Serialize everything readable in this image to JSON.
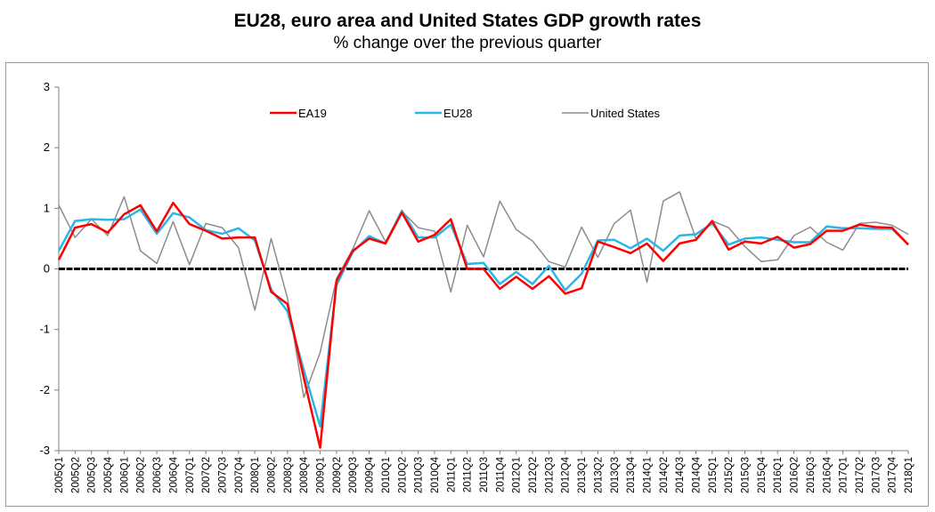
{
  "chart_data": {
    "type": "line",
    "title": "EU28, euro area and United States GDP growth rates",
    "subtitle": "% change over the previous quarter",
    "xlabel": "",
    "ylabel": "",
    "ylim": [
      -3,
      3
    ],
    "yticks": [
      3,
      2,
      1,
      0,
      -1,
      -2,
      -3
    ],
    "grid": false,
    "legend_position": "top",
    "categories": [
      "2005Q1",
      "2005Q2",
      "2005Q3",
      "2005Q4",
      "2006Q1",
      "2006Q2",
      "2006Q3",
      "2006Q4",
      "2007Q1",
      "2007Q2",
      "2007Q3",
      "2007Q4",
      "2008Q1",
      "2008Q2",
      "2008Q3",
      "2008Q4",
      "2009Q1",
      "2009Q2",
      "2009Q3",
      "2009Q4",
      "2010Q1",
      "2010Q2",
      "2010Q3",
      "2010Q4",
      "2011Q1",
      "2011Q2",
      "2011Q3",
      "2011Q4",
      "2012Q1",
      "2012Q2",
      "2012Q3",
      "2012Q4",
      "2013Q1",
      "2013Q2",
      "2013Q3",
      "2013Q4",
      "2014Q1",
      "2014Q2",
      "2014Q3",
      "2014Q4",
      "2015Q1",
      "2015Q2",
      "2015Q3",
      "2015Q4",
      "2016Q1",
      "2016Q2",
      "2016Q3",
      "2016Q4",
      "2017Q1",
      "2017Q2",
      "2017Q3",
      "2017Q4",
      "2018Q1"
    ],
    "series": [
      {
        "name": "EA19",
        "color": "#ff0000",
        "width": 2.5,
        "values": [
          0.15,
          0.68,
          0.74,
          0.6,
          0.9,
          1.05,
          0.62,
          1.09,
          0.74,
          0.63,
          0.5,
          0.52,
          0.52,
          -0.38,
          -0.58,
          -1.8,
          -2.95,
          -0.2,
          0.3,
          0.5,
          0.42,
          0.93,
          0.45,
          0.56,
          0.82,
          0.0,
          0.0,
          -0.33,
          -0.13,
          -0.33,
          -0.12,
          -0.41,
          -0.32,
          0.45,
          0.36,
          0.26,
          0.42,
          0.13,
          0.42,
          0.48,
          0.79,
          0.32,
          0.45,
          0.42,
          0.53,
          0.35,
          0.41,
          0.63,
          0.63,
          0.73,
          0.69,
          0.68,
          0.4
        ]
      },
      {
        "name": "EU28",
        "color": "#29b6e8",
        "width": 2.5,
        "values": [
          0.3,
          0.79,
          0.82,
          0.81,
          0.82,
          0.98,
          0.58,
          0.92,
          0.85,
          0.64,
          0.58,
          0.67,
          0.47,
          -0.34,
          -0.7,
          -1.67,
          -2.6,
          -0.27,
          0.28,
          0.54,
          0.42,
          0.96,
          0.52,
          0.52,
          0.73,
          0.08,
          0.1,
          -0.25,
          -0.05,
          -0.25,
          0.05,
          -0.35,
          -0.08,
          0.47,
          0.48,
          0.34,
          0.5,
          0.3,
          0.55,
          0.57,
          0.75,
          0.4,
          0.5,
          0.52,
          0.48,
          0.44,
          0.44,
          0.7,
          0.67,
          0.67,
          0.66,
          0.66,
          0.4
        ]
      },
      {
        "name": "United States",
        "color": "#8c8c8c",
        "width": 1.5,
        "values": [
          1.05,
          0.52,
          0.82,
          0.55,
          1.19,
          0.3,
          0.09,
          0.78,
          0.07,
          0.75,
          0.68,
          0.35,
          -0.68,
          0.5,
          -0.48,
          -2.12,
          -1.38,
          -0.16,
          0.33,
          0.96,
          0.45,
          0.95,
          0.68,
          0.62,
          -0.38,
          0.72,
          0.2,
          1.12,
          0.65,
          0.46,
          0.12,
          0.03,
          0.69,
          0.19,
          0.75,
          0.97,
          -0.22,
          1.12,
          1.27,
          0.5,
          0.79,
          0.68,
          0.37,
          0.12,
          0.15,
          0.55,
          0.69,
          0.44,
          0.31,
          0.75,
          0.77,
          0.72,
          0.57
        ]
      }
    ]
  }
}
